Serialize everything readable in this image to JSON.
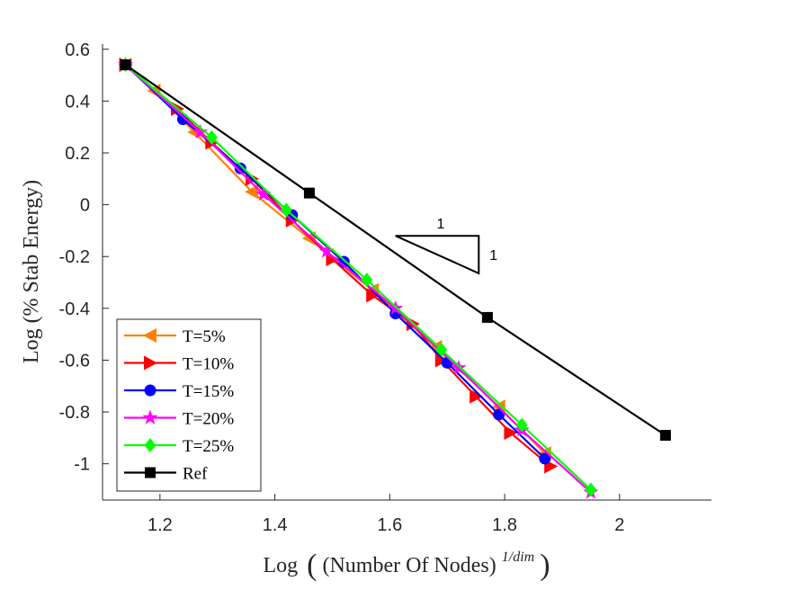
{
  "chart_data": {
    "type": "line",
    "xlabel_prefix": "Log",
    "xlabel_inner": "(Number Of Nodes)",
    "xlabel_sup": "1/dim",
    "ylabel": "Log (% Stab Energy)",
    "xlim": [
      1.1,
      2.16
    ],
    "ylim": [
      -1.14,
      0.62
    ],
    "xticks": [
      1.2,
      1.4,
      1.6,
      1.8,
      2.0
    ],
    "xtick_labels": [
      "1.2",
      "1.4",
      "1.6",
      "1.8",
      "2"
    ],
    "yticks": [
      0.6,
      0.4,
      0.2,
      0,
      -0.2,
      -0.4,
      -0.6,
      -0.8,
      -1
    ],
    "ytick_labels": [
      "0.6",
      "0.4",
      "0.2",
      "0",
      "-0.2",
      "-0.4",
      "-0.6",
      "-0.8",
      "-1"
    ],
    "legend_position": "bottom-left",
    "slope_triangle": {
      "top_label": "1",
      "side_label": "1",
      "points": [
        [
          1.61,
          -0.12
        ],
        [
          1.755,
          -0.12
        ],
        [
          1.755,
          -0.265
        ]
      ]
    },
    "series": [
      {
        "name": "T=5%",
        "color": "#ff8000",
        "marker": "triangle-left",
        "x": [
          1.14,
          1.19,
          1.26,
          1.36,
          1.46,
          1.57,
          1.68,
          1.79,
          1.87
        ],
        "y": [
          0.54,
          0.44,
          0.28,
          0.05,
          -0.13,
          -0.33,
          -0.55,
          -0.78,
          -0.96
        ]
      },
      {
        "name": "T=10%",
        "color": "#ff0000",
        "marker": "triangle-right",
        "x": [
          1.14,
          1.23,
          1.29,
          1.36,
          1.43,
          1.5,
          1.57,
          1.64,
          1.69,
          1.75,
          1.81,
          1.88
        ],
        "y": [
          0.54,
          0.37,
          0.24,
          0.1,
          -0.06,
          -0.21,
          -0.35,
          -0.46,
          -0.6,
          -0.74,
          -0.88,
          -1.01
        ]
      },
      {
        "name": "T=15%",
        "color": "#0000ff",
        "marker": "circle",
        "x": [
          1.14,
          1.24,
          1.34,
          1.43,
          1.52,
          1.61,
          1.7,
          1.79,
          1.87
        ],
        "y": [
          0.54,
          0.33,
          0.14,
          -0.04,
          -0.22,
          -0.42,
          -0.61,
          -0.81,
          -0.98
        ]
      },
      {
        "name": "T=20%",
        "color": "#ff00ff",
        "marker": "star",
        "x": [
          1.14,
          1.27,
          1.38,
          1.49,
          1.61,
          1.72,
          1.83,
          1.95
        ],
        "y": [
          0.54,
          0.28,
          0.04,
          -0.18,
          -0.4,
          -0.63,
          -0.87,
          -1.11
        ]
      },
      {
        "name": "T=25%",
        "color": "#00ff00",
        "marker": "diamond",
        "x": [
          1.14,
          1.29,
          1.42,
          1.56,
          1.69,
          1.83,
          1.95
        ],
        "y": [
          0.54,
          0.26,
          -0.02,
          -0.29,
          -0.56,
          -0.85,
          -1.1
        ]
      },
      {
        "name": "Ref",
        "color": "#000000",
        "marker": "square",
        "x": [
          1.14,
          1.46,
          1.77,
          2.08
        ],
        "y": [
          0.54,
          0.045,
          -0.435,
          -0.89
        ]
      }
    ]
  }
}
